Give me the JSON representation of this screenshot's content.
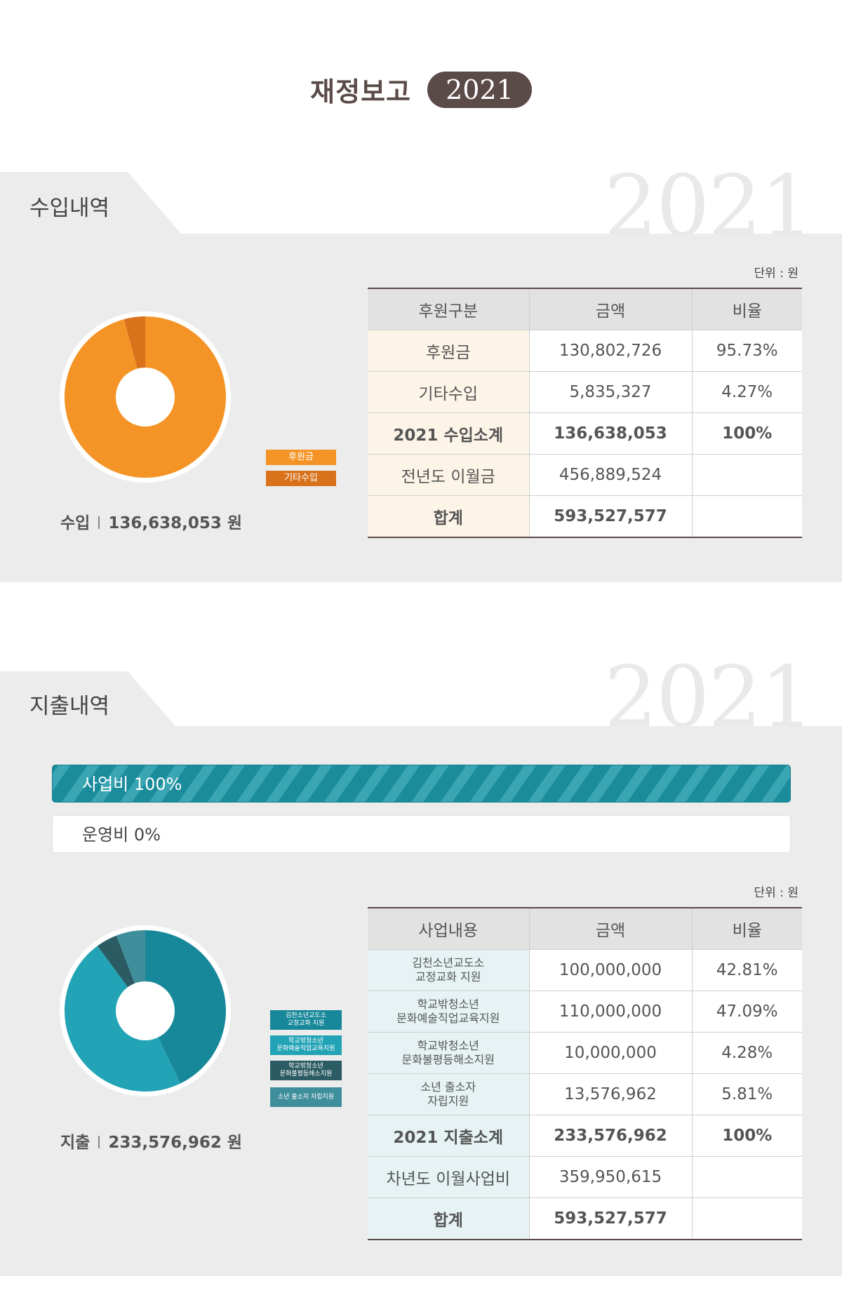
{
  "header": {
    "title": "재정보고",
    "year": "2021"
  },
  "income": {
    "section_title": "수입내역",
    "watermark": "2021",
    "unit": "단위 : 원",
    "legend": [
      {
        "label": "후원금",
        "color": "#f59426"
      },
      {
        "label": "기타수입",
        "color": "#d9721b"
      }
    ],
    "caption": {
      "label": "수입",
      "amount": "136,638,053 원"
    },
    "table": {
      "headers": [
        "후원구분",
        "금액",
        "비율"
      ],
      "rows": [
        {
          "label": "후원금",
          "amount": "130,802,726",
          "ratio": "95.73%"
        },
        {
          "label": "기타수입",
          "amount": "5,835,327",
          "ratio": "4.27%"
        },
        {
          "label": "2021 수입소계",
          "amount": "136,638,053",
          "ratio": "100%"
        },
        {
          "label": "전년도 이월금",
          "amount": "456,889,524",
          "ratio": ""
        },
        {
          "label": "합계",
          "amount": "593,527,577",
          "ratio": ""
        }
      ]
    }
  },
  "expense": {
    "section_title": "지출내역",
    "watermark": "2021",
    "unit": "단위 : 원",
    "bars": [
      {
        "label": "사업비 100%",
        "value": 100
      },
      {
        "label": "운영비 0%",
        "value": 0
      }
    ],
    "legend": [
      {
        "line1": "김천소년교도소",
        "line2": "교정교화 지원",
        "color": "#17889a"
      },
      {
        "line1": "학교밖청소년",
        "line2": "문화예술직업교육지원",
        "color": "#22a3b6"
      },
      {
        "line1": "학교밖청소년",
        "line2": "문화불평등해소지원",
        "color": "#2b5b63"
      },
      {
        "line1": "소년 출소자 자립지원",
        "line2": "",
        "color": "#3f8e9c"
      }
    ],
    "caption": {
      "label": "지출",
      "amount": "233,576,962 원"
    },
    "table": {
      "headers": [
        "사업내용",
        "금액",
        "비율"
      ],
      "rows": [
        {
          "line1": "김천소년교도소",
          "line2": "교정교화 지원",
          "amount": "100,000,000",
          "ratio": "42.81%"
        },
        {
          "line1": "학교밖청소년",
          "line2": "문화예술직업교육지원",
          "amount": "110,000,000",
          "ratio": "47.09%"
        },
        {
          "line1": "학교밖청소년",
          "line2": "문화불평등해소지원",
          "amount": "10,000,000",
          "ratio": "4.28%"
        },
        {
          "line1": "소년 출소자",
          "line2": "자립지원",
          "amount": "13,576,962",
          "ratio": "5.81%"
        }
      ],
      "totals": [
        {
          "label": "2021 지출소계",
          "amount": "233,576,962",
          "ratio": "100%"
        },
        {
          "label": "차년도 이월사업비",
          "amount": "359,950,615",
          "ratio": ""
        },
        {
          "label": "합계",
          "amount": "593,527,577",
          "ratio": ""
        }
      ]
    }
  },
  "chart_data": [
    {
      "type": "pie",
      "categories": [
        "후원금",
        "기타수입"
      ],
      "values": [
        95.73,
        4.27
      ],
      "colors": [
        "#f59426",
        "#d9721b"
      ]
    },
    {
      "type": "pie",
      "categories": [
        "김천소년교도소 교정교화 지원",
        "학교밖청소년 문화예술직업교육지원",
        "학교밖청소년 문화불평등해소지원",
        "소년 출소자 자립지원"
      ],
      "values": [
        42.81,
        47.09,
        4.28,
        5.81
      ],
      "colors": [
        "#17889a",
        "#22a3b6",
        "#2b5b63",
        "#3f8e9c"
      ]
    }
  ]
}
